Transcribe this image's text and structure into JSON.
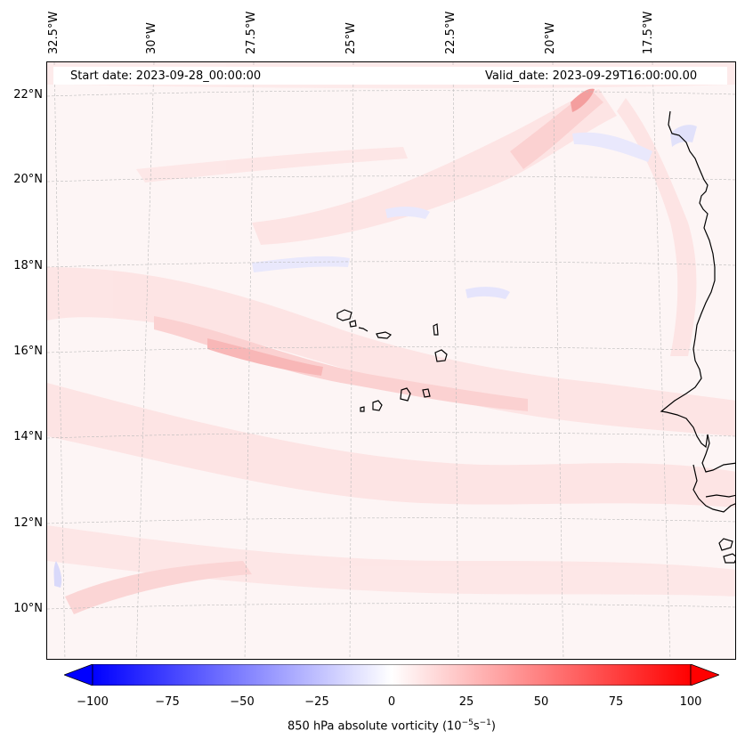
{
  "map": {
    "start_date_label": "Start date: 2023-09-28_00:00:00",
    "valid_date_label": "Valid_date: 2023-09-29T16:00:00.00",
    "lon_labels": [
      "32.5°W",
      "30°W",
      "27.5°W",
      "25°W",
      "22.5°W",
      "20°W",
      "17.5°W"
    ],
    "lat_labels": [
      "22°N",
      "20°N",
      "18°N",
      "16°N",
      "14°N",
      "12°N",
      "10°N"
    ],
    "field_colors": {
      "background": "#fdf5f5",
      "light_pink": "#fde4e4",
      "pink": "#fbd0d0",
      "strong_pink": "#f8b4b4",
      "peak_red": "#f49a9a",
      "light_blue": "#e8e8fd",
      "blue": "#d8d8fb"
    },
    "coastline_color": "#000000"
  },
  "colorbar": {
    "ticks": [
      "−100",
      "−75",
      "−50",
      "−25",
      "0",
      "25",
      "50",
      "75",
      "100"
    ],
    "min": -100,
    "max": 100,
    "negative_color": "#0000ff",
    "zero_color": "#ffffff",
    "positive_color": "#ff0000",
    "title_prefix": "850 hPa absolute vorticity (10",
    "title_exp1": "−5",
    "title_mid": "s",
    "title_exp2": "−1",
    "title_suffix": ")"
  }
}
